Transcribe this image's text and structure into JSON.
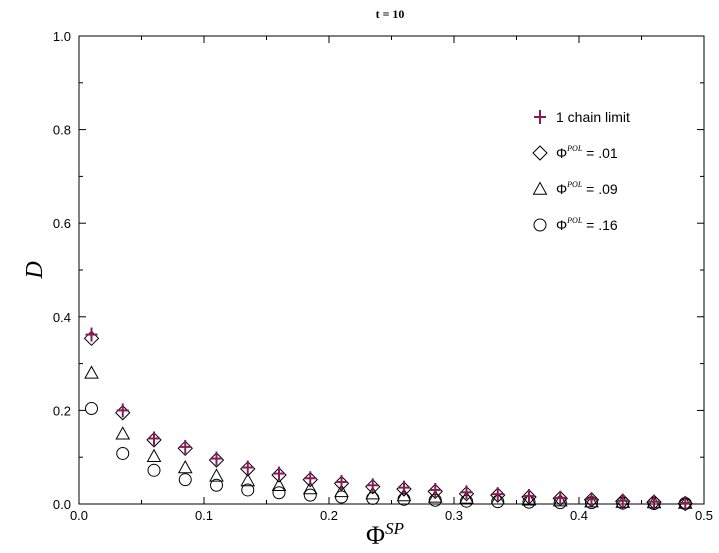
{
  "chart_data": {
    "type": "scatter",
    "title": "t = 10",
    "xlabel": {
      "base": "Φ",
      "sup": "SP"
    },
    "ylabel": "D",
    "xlim": [
      0,
      0.5
    ],
    "ylim": [
      0,
      1.0
    ],
    "xticks": [
      "0.0",
      "0.1",
      "0.2",
      "0.3",
      "0.4",
      "0.5"
    ],
    "yticks": [
      "0.0",
      "0.2",
      "0.4",
      "0.6",
      "0.8",
      "1.0"
    ],
    "legend_position": "top-right",
    "series": [
      {
        "name": "1 chain limit",
        "marker": "plus",
        "color": "#8a1a5a",
        "x": [
          0.01,
          0.035,
          0.06,
          0.085,
          0.11,
          0.135,
          0.16,
          0.185,
          0.21,
          0.235,
          0.26,
          0.285,
          0.31,
          0.335,
          0.36,
          0.385,
          0.41,
          0.435,
          0.46,
          0.485
        ],
        "y": [
          0.362,
          0.2,
          0.14,
          0.122,
          0.097,
          0.078,
          0.065,
          0.055,
          0.047,
          0.04,
          0.035,
          0.03,
          0.025,
          0.021,
          0.017,
          0.013,
          0.01,
          0.007,
          0.005,
          0.002
        ]
      },
      {
        "name": "Φ^POL = .01",
        "marker": "diamond",
        "color": "#000000",
        "x": [
          0.01,
          0.035,
          0.06,
          0.085,
          0.11,
          0.135,
          0.16,
          0.185,
          0.21,
          0.235,
          0.26,
          0.285,
          0.31,
          0.335,
          0.36,
          0.385,
          0.41,
          0.435,
          0.46,
          0.485
        ],
        "y": [
          0.354,
          0.195,
          0.137,
          0.119,
          0.094,
          0.075,
          0.062,
          0.052,
          0.044,
          0.037,
          0.032,
          0.027,
          0.022,
          0.019,
          0.015,
          0.012,
          0.009,
          0.006,
          0.004,
          0.001
        ]
      },
      {
        "name": "Φ^POL = .09",
        "marker": "triangle",
        "color": "#000000",
        "x": [
          0.01,
          0.035,
          0.06,
          0.085,
          0.11,
          0.135,
          0.16,
          0.185,
          0.21,
          0.235,
          0.26,
          0.285,
          0.31,
          0.335,
          0.36,
          0.385,
          0.41,
          0.435,
          0.46,
          0.485
        ],
        "y": [
          0.28,
          0.15,
          0.102,
          0.078,
          0.06,
          0.05,
          0.04,
          0.033,
          0.027,
          0.022,
          0.018,
          0.015,
          0.013,
          0.011,
          0.009,
          0.007,
          0.005,
          0.004,
          0.003,
          0.002
        ]
      },
      {
        "name": "Φ^POL = .16",
        "marker": "circle",
        "color": "#000000",
        "x": [
          0.01,
          0.035,
          0.06,
          0.085,
          0.11,
          0.135,
          0.16,
          0.185,
          0.21,
          0.235,
          0.26,
          0.285,
          0.31,
          0.335,
          0.36,
          0.385,
          0.41,
          0.435,
          0.46,
          0.485
        ],
        "y": [
          0.204,
          0.108,
          0.072,
          0.052,
          0.04,
          0.03,
          0.024,
          0.019,
          0.015,
          0.012,
          0.01,
          0.008,
          0.006,
          0.005,
          0.004,
          0.003,
          0.003,
          0.002,
          0.001,
          0.001
        ]
      }
    ],
    "legend": [
      {
        "marker": "plus",
        "text": "1 chain limit"
      },
      {
        "marker": "diamond",
        "base": "Φ",
        "sup": "POL",
        "text": " = .01"
      },
      {
        "marker": "triangle",
        "base": "Φ",
        "sup": "POL",
        "text": " = .09"
      },
      {
        "marker": "circle",
        "base": "Φ",
        "sup": "POL",
        "text": " = .16"
      }
    ]
  }
}
